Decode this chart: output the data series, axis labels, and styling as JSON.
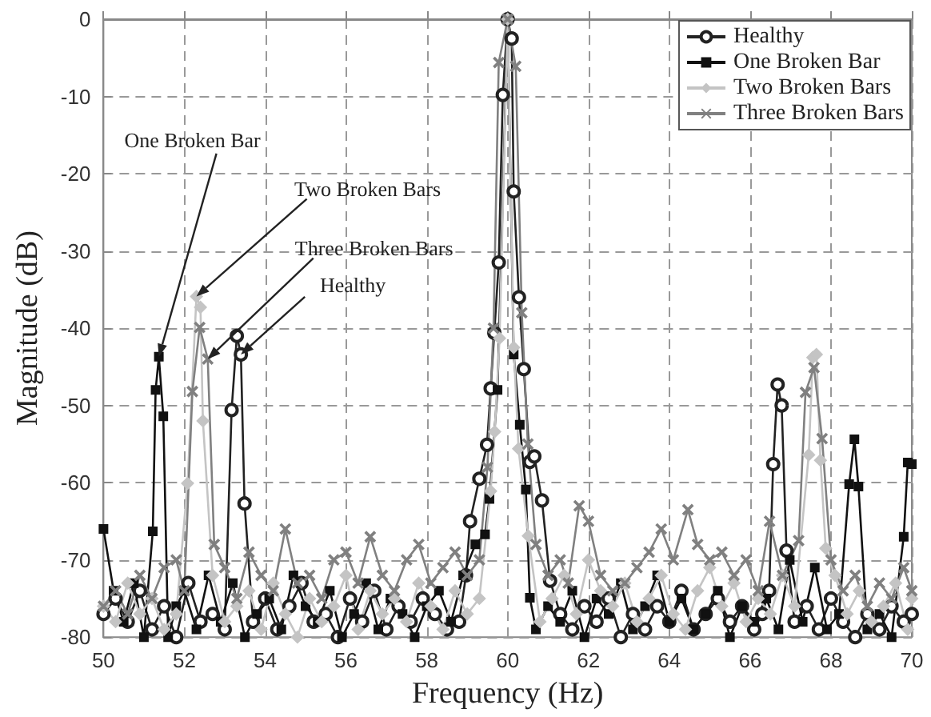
{
  "chart_data": {
    "type": "line",
    "xlabel": "Frequency (Hz)",
    "ylabel": "Magnitude (dB)",
    "xlim": [
      50,
      70
    ],
    "xticks": [
      50,
      52,
      54,
      56,
      58,
      60,
      62,
      64,
      66,
      68,
      70
    ],
    "ylim": [
      -80,
      0
    ],
    "yticks": [
      -80,
      -70,
      -60,
      -50,
      -40,
      -30,
      -20,
      -10,
      0
    ],
    "grid": true,
    "legend": "top right",
    "line_style": "solid",
    "series": [
      {
        "name": "Healthy",
        "color": "#222222",
        "marker": "circle",
        "x": [
          50,
          50.3,
          50.6,
          50.9,
          51.2,
          51.5,
          51.8,
          52.1,
          52.4,
          52.7,
          53.0,
          53.17,
          53.3,
          53.4,
          53.49,
          53.7,
          54,
          54.3,
          54.6,
          54.9,
          55.2,
          55.5,
          55.8,
          56.1,
          56.4,
          56.7,
          57,
          57.3,
          57.6,
          57.9,
          58.2,
          58.5,
          58.8,
          58.97,
          59.07,
          59.3,
          59.49,
          59.58,
          59.67,
          59.78,
          59.88,
          60,
          60.1,
          60.15,
          60.28,
          60.4,
          60.55,
          60.66,
          60.85,
          61.05,
          61.3,
          61.6,
          61.9,
          62.2,
          62.5,
          62.8,
          63.1,
          63.4,
          63.7,
          64,
          64.3,
          64.6,
          64.9,
          65.2,
          65.5,
          65.8,
          66.1,
          66.3,
          66.47,
          66.57,
          66.68,
          66.78,
          66.9,
          67.1,
          67.4,
          67.7,
          68,
          68.3,
          68.6,
          68.9,
          69.2,
          69.5,
          69.8,
          70
        ],
        "values": [
          -77,
          -75,
          -78,
          -74,
          -79,
          -76,
          -80,
          -73,
          -78,
          -77,
          -79,
          -50.6,
          -41,
          -43.4,
          -62.7,
          -78,
          -75,
          -79,
          -76,
          -73,
          -78,
          -77,
          -80,
          -75,
          -78,
          -74,
          -79,
          -76,
          -78,
          -75,
          -77,
          -79,
          -78,
          -72,
          -65,
          -59.5,
          -55.1,
          -47.8,
          -40.6,
          -31.5,
          -9.8,
          0,
          -2.5,
          -22.3,
          -36,
          -45.3,
          -57.3,
          -56.6,
          -62.3,
          -72.7,
          -77,
          -79,
          -76,
          -78,
          -75,
          -80,
          -77,
          -79,
          -76,
          -78,
          -74,
          -79,
          -77,
          -75,
          -78,
          -76,
          -79,
          -77,
          -74,
          -57.6,
          -47.3,
          -50,
          -68.8,
          -78,
          -76,
          -79,
          -75,
          -78,
          -80,
          -77,
          -79,
          -76,
          -78,
          -77
        ]
      },
      {
        "name": "One Broken Bar",
        "color": "#111111",
        "marker": "square",
        "x": [
          50,
          50.25,
          50.5,
          50.75,
          51,
          51.22,
          51.29,
          51.37,
          51.48,
          51.6,
          51.8,
          52,
          52.3,
          52.6,
          52.9,
          53.2,
          53.5,
          53.8,
          54.1,
          54.4,
          54.7,
          55,
          55.3,
          55.6,
          55.9,
          56.2,
          56.5,
          56.8,
          57.1,
          57.4,
          57.7,
          58,
          58.3,
          58.6,
          58.9,
          59.2,
          59.44,
          59.55,
          59.75,
          60,
          60.15,
          60.3,
          60.45,
          60.55,
          60.7,
          61,
          61.3,
          61.6,
          61.9,
          62.2,
          62.5,
          62.8,
          63.1,
          63.4,
          63.7,
          64,
          64.3,
          64.6,
          64.9,
          65.2,
          65.5,
          65.8,
          66.1,
          66.4,
          66.7,
          66.98,
          67.3,
          67.6,
          67.9,
          68.2,
          68.45,
          68.58,
          68.68,
          68.9,
          69.2,
          69.5,
          69.8,
          69.9,
          70
        ],
        "values": [
          -66,
          -74,
          -78,
          -73,
          -80,
          -66.3,
          -48,
          -43.7,
          -51.4,
          -80,
          -76,
          -74,
          -79,
          -72,
          -78,
          -73,
          -80,
          -77,
          -75,
          -79,
          -72,
          -76,
          -78,
          -74,
          -80,
          -77,
          -73,
          -79,
          -75,
          -77,
          -80,
          -76,
          -74,
          -78,
          -72,
          -68,
          -66.7,
          -62.1,
          -48,
          0,
          -43.4,
          -52.5,
          -60.9,
          -74.9,
          -79,
          -76,
          -78,
          -74,
          -80,
          -75,
          -77,
          -73,
          -79,
          -76,
          -72,
          -78,
          -75,
          -79,
          -77,
          -74,
          -80,
          -76,
          -78,
          -75,
          -79,
          -70,
          -78,
          -71,
          -79,
          -77,
          -60.2,
          -54.4,
          -60.5,
          -79,
          -77,
          -80,
          -67,
          -57.4,
          -57.6
        ]
      },
      {
        "name": "Two Broken Bars",
        "color": "#c4c4c4",
        "marker": "diamond",
        "x": [
          50,
          50.3,
          50.6,
          50.9,
          51.2,
          51.5,
          51.8,
          52.08,
          52.3,
          52.4,
          52.46,
          52.7,
          53,
          53.3,
          53.6,
          53.9,
          54.2,
          54.5,
          54.8,
          55.1,
          55.4,
          55.7,
          56,
          56.3,
          56.6,
          56.9,
          57.2,
          57.5,
          57.8,
          58.1,
          58.4,
          58.7,
          59,
          59.3,
          59.58,
          59.68,
          59.8,
          60,
          60.15,
          60.27,
          60.51,
          60.8,
          61.1,
          61.4,
          61.7,
          62,
          62.3,
          62.6,
          62.9,
          63.2,
          63.5,
          63.8,
          64.1,
          64.4,
          64.7,
          65,
          65.3,
          65.6,
          65.9,
          66.2,
          66.5,
          66.8,
          67.1,
          67.45,
          67.55,
          67.64,
          67.74,
          67.87,
          68.1,
          68.4,
          68.7,
          69,
          69.3,
          69.6,
          69.9,
          70
        ],
        "values": [
          -76,
          -78,
          -73,
          -77,
          -75,
          -79,
          -77,
          -60.1,
          -35.9,
          -37.3,
          -52,
          -72,
          -78,
          -76,
          -74,
          -79,
          -73,
          -77,
          -80,
          -75,
          -78,
          -76,
          -72,
          -79,
          -74,
          -77,
          -75,
          -78,
          -73,
          -76,
          -79,
          -74,
          -77,
          -75,
          -61.1,
          -53.4,
          -41.3,
          0,
          -42.5,
          -55.6,
          -66.9,
          -78,
          -75,
          -72,
          -77,
          -70,
          -74,
          -76,
          -73,
          -78,
          -75,
          -72,
          -77,
          -79,
          -74,
          -71,
          -76,
          -73,
          -78,
          -75,
          -77,
          -72,
          -76,
          -56.4,
          -43.8,
          -43.4,
          -57.1,
          -68.5,
          -72,
          -77,
          -74,
          -78,
          -76,
          -73,
          -79,
          -75
        ]
      },
      {
        "name": "Three Broken Bars",
        "color": "#808080",
        "marker": "cross",
        "x": [
          50,
          50.3,
          50.6,
          50.9,
          51.2,
          51.5,
          51.8,
          52,
          52.2,
          52.38,
          52.58,
          52.74,
          53,
          53.3,
          53.6,
          53.9,
          54.2,
          54.5,
          54.8,
          55.1,
          55.4,
          55.7,
          56,
          56.3,
          56.6,
          56.9,
          57.2,
          57.5,
          57.8,
          58.1,
          58.4,
          58.7,
          59,
          59.3,
          59.5,
          59.65,
          59.78,
          60,
          60.2,
          60.35,
          60.5,
          60.7,
          61,
          61.3,
          61.5,
          61.77,
          62,
          62.3,
          62.6,
          62.9,
          63.2,
          63.5,
          63.8,
          64.1,
          64.46,
          64.7,
          65,
          65.3,
          65.6,
          65.9,
          66.2,
          66.48,
          66.8,
          67.2,
          67.37,
          67.58,
          67.78,
          68,
          68.3,
          68.6,
          68.9,
          69.2,
          69.5,
          69.8,
          70
        ],
        "values": [
          -76,
          -74,
          -77,
          -72,
          -75,
          -71,
          -70,
          -74,
          -48.2,
          -39.9,
          -44,
          -68,
          -71,
          -75,
          -69,
          -72,
          -74,
          -66,
          -73,
          -72,
          -75,
          -70,
          -69,
          -73,
          -67,
          -72,
          -74,
          -70,
          -68,
          -73,
          -71,
          -69,
          -72,
          -70,
          -58,
          -40,
          -5.6,
          0,
          -6.1,
          -38,
          -55,
          -68,
          -72,
          -70,
          -73,
          -63,
          -65,
          -72,
          -74,
          -73,
          -71,
          -69,
          -66,
          -70,
          -63.5,
          -68,
          -70,
          -69,
          -72,
          -70,
          -74,
          -65,
          -72,
          -67.5,
          -48.3,
          -45.1,
          -54.3,
          -70,
          -74,
          -72,
          -76,
          -73,
          -75,
          -71,
          -74
        ]
      }
    ],
    "annotations": [
      {
        "text": "One Broken Bar",
        "x": 51.37,
        "y": -43.7
      },
      {
        "text": "Two Broken Bars",
        "x": 52.3,
        "y": -35.9
      },
      {
        "text": "Three Broken Bars",
        "x": 52.58,
        "y": -44
      },
      {
        "text": "Healthy",
        "x": 53.4,
        "y": -43.4
      }
    ]
  }
}
